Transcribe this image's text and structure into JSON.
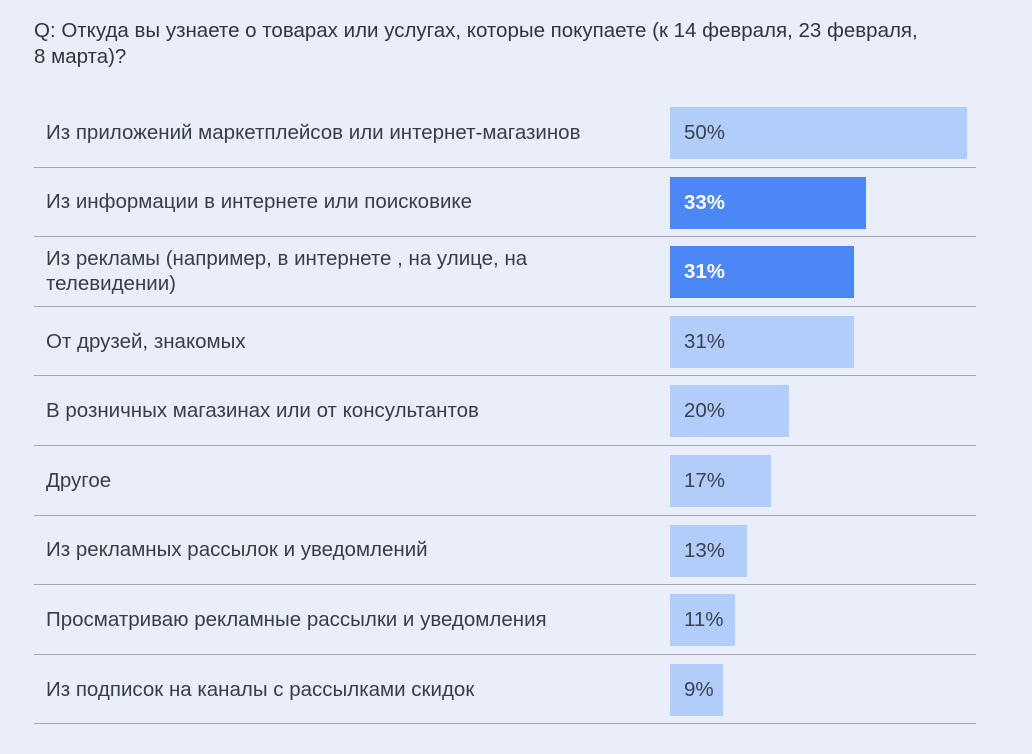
{
  "chart_data": {
    "type": "bar",
    "orientation": "horizontal",
    "title": "Q: Откуда вы узнаете о товарах или услугах, которые покупаете (к 14 февраля, 23 февраля, 8 марта)?",
    "categories": [
      "Из приложений маркетплейсов или интернет-магазинов",
      "Из информации в интернете или поисковике",
      "Из рекламы (например, в интернете , на улице, на телевидении)",
      "От друзей, знакомых",
      "В розничных магазинах или от консультантов",
      "Другое",
      "Из рекламных рассылок и уведомлений",
      "Просматриваю рекламные рассылки и уведомления",
      "Из подписок на каналы с рассылками скидок"
    ],
    "values": [
      50,
      33,
      31,
      31,
      20,
      17,
      13,
      11,
      9
    ],
    "value_labels": [
      "50%",
      "33%",
      "31%",
      "31%",
      "20%",
      "17%",
      "13%",
      "11%",
      "9%"
    ],
    "highlighted": [
      false,
      true,
      true,
      false,
      false,
      false,
      false,
      false,
      false
    ],
    "unit": "%",
    "xlim": [
      0,
      50
    ],
    "colors": {
      "bar": "#b3cdfa",
      "highlight": "#4b87f6",
      "background": "#e9eef8"
    }
  }
}
